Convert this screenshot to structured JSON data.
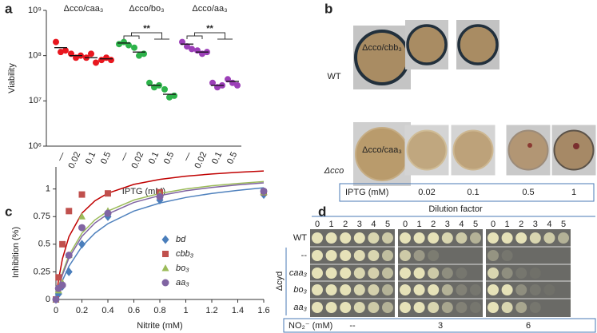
{
  "chart_data": [
    {
      "type": "dot",
      "panel": "a",
      "ylabel": "Viability",
      "xlabel": "IPTG (mM)",
      "log_y": true,
      "categories": [
        "—",
        "0.02",
        "0.1",
        "0.5"
      ],
      "ylim": [
        1000000,
        1000000000
      ],
      "yticks": [
        {
          "value": 1000000,
          "label": "10⁶"
        },
        {
          "value": 10000000,
          "label": "10⁷"
        },
        {
          "value": 100000000,
          "label": "10⁸"
        },
        {
          "value": 1000000000,
          "label": "10⁹"
        }
      ],
      "series": [
        {
          "name": "Δcco/caa₃",
          "color": "#e8171f",
          "values": [
            [
              200000000,
              120000000,
              130000000
            ],
            [
              110000000,
              90000000,
              100000000
            ],
            [
              90000000,
              110000000,
              70000000
            ],
            [
              80000000,
              90000000,
              80000000
            ]
          ],
          "means": [
            150000000,
            100000000,
            90000000,
            85000000
          ]
        },
        {
          "name": "Δcco/bo₃",
          "color": "#2db34a",
          "values": [
            [
              180000000,
              200000000,
              170000000
            ],
            [
              150000000,
              100000000,
              110000000
            ],
            [
              25000000,
              20000000,
              22000000
            ],
            [
              18000000,
              12000000,
              13000000
            ]
          ],
          "means": [
            190000000,
            120000000,
            22000000,
            14000000
          ]
        },
        {
          "name": "Δcco/aa₃",
          "color": "#9c3fb8",
          "values": [
            [
              200000000,
              160000000,
              140000000
            ],
            [
              130000000,
              110000000,
              120000000
            ],
            [
              25000000,
              20000000,
              22000000
            ],
            [
              30000000,
              25000000,
              22000000
            ]
          ],
          "means": [
            180000000,
            120000000,
            22000000,
            27000000
          ]
        }
      ],
      "annotations": [
        "**",
        "**"
      ]
    },
    {
      "type": "scatter",
      "panel": "c",
      "ylabel": "Inhibition (%)",
      "xlabel": "Nitrite (mM)",
      "xlim": [
        0,
        1.6
      ],
      "xticks": [
        0,
        0.2,
        0.4,
        0.6,
        0.8,
        1,
        1.2,
        1.4,
        1.6
      ],
      "ylim": [
        0,
        1.2
      ],
      "yticks": [
        0,
        0.25,
        0.5,
        0.75,
        1
      ],
      "x": [
        0,
        0.02,
        0.05,
        0.1,
        0.2,
        0.4,
        0.8,
        1.6
      ],
      "fit_x": [
        0,
        0.02,
        0.05,
        0.1,
        0.2,
        0.3,
        0.4,
        0.6,
        0.8,
        1.0,
        1.2,
        1.4,
        1.6
      ],
      "series": [
        {
          "name": "bd",
          "color": "#4a7ebb",
          "fit_color": "#4f81bd",
          "marker": "diamond",
          "values": [
            0,
            0.05,
            0.12,
            0.25,
            0.5,
            0.75,
            0.9,
            0.95
          ],
          "fit": [
            0,
            0.075,
            0.171,
            0.3,
            0.48,
            0.6,
            0.686,
            0.8,
            0.873,
            0.923,
            0.96,
            0.988,
            1.011
          ]
        },
        {
          "name": "cbb₃",
          "color": "#c0504d",
          "fit_color": "#c00000",
          "marker": "square",
          "values": [
            0,
            0.2,
            0.5,
            0.8,
            0.95,
            0.96,
            0.97,
            0.97
          ],
          "fit": [
            0,
            0.179,
            0.368,
            0.568,
            0.781,
            0.893,
            0.962,
            1.042,
            1.087,
            1.116,
            1.136,
            1.151,
            1.163
          ]
        },
        {
          "name": "bo₃",
          "color": "#9bbb59",
          "fit_color": "#9bbb59",
          "marker": "triangle",
          "values": [
            0,
            0.08,
            0.15,
            0.4,
            0.75,
            0.8,
            0.95,
            0.97
          ],
          "fit": [
            0,
            0.109,
            0.24,
            0.4,
            0.6,
            0.72,
            0.8,
            0.9,
            0.96,
            1.0,
            1.029,
            1.05,
            1.067
          ]
        },
        {
          "name": "aa₃",
          "color": "#8064a2",
          "fit_color": "#8064a2",
          "marker": "circle",
          "values": [
            0,
            0.1,
            0.13,
            0.4,
            0.65,
            0.78,
            0.93,
            0.98
          ],
          "fit": [
            0,
            0.1,
            0.222,
            0.375,
            0.571,
            0.692,
            0.774,
            0.878,
            0.941,
            0.984,
            1.014,
            1.037,
            1.055
          ]
        }
      ]
    }
  ],
  "panel_b": {
    "label": "b",
    "row_labels": [
      "WT",
      "Δcco"
    ],
    "strains": [
      "Δcco/cbb₃",
      "Δcco/caa₃"
    ],
    "iptg_label": "IPTG (mM)",
    "iptg": [
      "0.02",
      "0.1",
      "0.5",
      "1"
    ]
  },
  "panel_d": {
    "label": "d",
    "title": "Dilution factor",
    "dilutions": [
      "0",
      "1",
      "2",
      "3",
      "4",
      "5"
    ],
    "strain_group": "Δcyd",
    "rows": [
      "WT",
      "--",
      "caa₃",
      "bo₃",
      "aa₃"
    ],
    "no2_label": "NO₂⁻ (mM)",
    "no2": [
      "--",
      "3",
      "6"
    ]
  }
}
